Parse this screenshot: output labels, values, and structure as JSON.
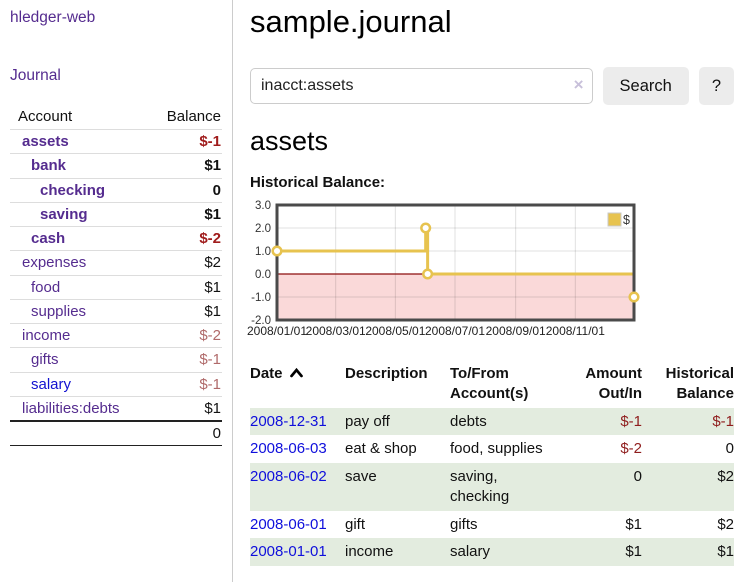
{
  "app": {
    "title": "hledger-web"
  },
  "sidebar": {
    "journal_link": "Journal",
    "accounts": {
      "header_account": "Account",
      "header_balance": "Balance",
      "rows": [
        {
          "name": "assets",
          "indent": 1,
          "bold": true,
          "balance": "$-1",
          "balance_class": "neg-strong",
          "link_blue": false
        },
        {
          "name": "bank",
          "indent": 2,
          "bold": true,
          "balance": "$1",
          "balance_class": "pos",
          "link_blue": false
        },
        {
          "name": "checking",
          "indent": 3,
          "bold": true,
          "balance": "0",
          "balance_class": "pos",
          "link_blue": false
        },
        {
          "name": "saving",
          "indent": 3,
          "bold": true,
          "balance": "$1",
          "balance_class": "pos",
          "link_blue": false
        },
        {
          "name": "cash",
          "indent": 2,
          "bold": true,
          "balance": "$-2",
          "balance_class": "neg-strong",
          "link_blue": false
        },
        {
          "name": "expenses",
          "indent": 1,
          "bold": false,
          "balance": "$2",
          "balance_class": "pos",
          "link_blue": false
        },
        {
          "name": "food",
          "indent": 2,
          "bold": false,
          "balance": "$1",
          "balance_class": "pos",
          "link_blue": false
        },
        {
          "name": "supplies",
          "indent": 2,
          "bold": false,
          "balance": "$1",
          "balance_class": "pos",
          "link_blue": false
        },
        {
          "name": "income",
          "indent": 1,
          "bold": false,
          "balance": "$-2",
          "balance_class": "neg-muted",
          "link_blue": false
        },
        {
          "name": "gifts",
          "indent": 2,
          "bold": false,
          "balance": "$-1",
          "balance_class": "neg-muted",
          "link_blue": false
        },
        {
          "name": "salary",
          "indent": 2,
          "bold": false,
          "balance": "$-1",
          "balance_class": "neg-muted",
          "link_blue": true
        },
        {
          "name": "liabilities:debts",
          "indent": 1,
          "bold": false,
          "balance": "$1",
          "balance_class": "pos",
          "link_blue": false
        }
      ],
      "total": "0"
    }
  },
  "main": {
    "title": "sample.journal",
    "search": {
      "value": "inacct:assets",
      "clear_icon": "×",
      "button_label": "Search",
      "help_label": "?"
    },
    "account_heading": "assets",
    "chart_label": "Historical Balance:"
  },
  "chart_data": {
    "type": "line",
    "step": true,
    "title": "Historical Balance",
    "series": [
      {
        "name": "$",
        "color": "#e7c34f",
        "points": [
          {
            "date": "2008-01-01",
            "value": 1
          },
          {
            "date": "2008-06-01",
            "value": 2
          },
          {
            "date": "2008-06-03",
            "value": 0
          },
          {
            "date": "2008-12-31",
            "value": -1
          }
        ]
      }
    ],
    "x_domain": [
      "2008-01-01",
      "2008-12-31"
    ],
    "ylim": [
      -2,
      3
    ],
    "yticks": [
      {
        "label": "3.0",
        "value": 3
      },
      {
        "label": "2.0",
        "value": 2
      },
      {
        "label": "1.0",
        "value": 1
      },
      {
        "label": "0.0",
        "value": 0
      },
      {
        "label": "-1.0",
        "value": -1
      },
      {
        "label": "-2.0",
        "value": -2
      }
    ],
    "xticks": [
      {
        "label": "2008/01/01",
        "date": "2008-01-01"
      },
      {
        "label": "2008/03/01",
        "date": "2008-03-01"
      },
      {
        "label": "2008/05/01",
        "date": "2008-05-01"
      },
      {
        "label": "2008/07/01",
        "date": "2008-07-01"
      },
      {
        "label": "2008/09/01",
        "date": "2008-09-01"
      },
      {
        "label": "2008/11/01",
        "date": "2008-11-01"
      }
    ],
    "legend": {
      "label": "$",
      "position": "top-right"
    },
    "negative_fill": "#fad9d9",
    "zero_line_color": "#8c0d0d",
    "grid": true,
    "border_color": "#4a4a4a"
  },
  "register": {
    "headers": {
      "date": "Date",
      "description": "Description",
      "accounts": "To/From Account(s)",
      "amount": "Amount Out/In",
      "balance": "Historical Balance"
    },
    "rows": [
      {
        "date": "2008-12-31",
        "description": "pay off",
        "accounts": "debts",
        "amount": "$-1",
        "amount_neg": true,
        "balance": "$-1",
        "balance_neg": true
      },
      {
        "date": "2008-06-03",
        "description": "eat & shop",
        "accounts": "food, supplies",
        "amount": "$-2",
        "amount_neg": true,
        "balance": "0",
        "balance_neg": false
      },
      {
        "date": "2008-06-02",
        "description": "save",
        "accounts": "saving, checking",
        "amount": "0",
        "amount_neg": false,
        "balance": "$2",
        "balance_neg": false
      },
      {
        "date": "2008-06-01",
        "description": "gift",
        "accounts": "gifts",
        "amount": "$1",
        "amount_neg": false,
        "balance": "$2",
        "balance_neg": false
      },
      {
        "date": "2008-01-01",
        "description": "income",
        "accounts": "salary",
        "amount": "$1",
        "amount_neg": false,
        "balance": "$1",
        "balance_neg": false
      }
    ]
  },
  "colors": {
    "link_purple": "#552c8f",
    "link_blue": "#0f0fdc",
    "negative_strong": "#a01c1c",
    "negative_muted": "#b06a6a",
    "register_negative": "#8f1d1d",
    "row_stripe_green": "#e3ecdf",
    "series_gold": "#e7c34f",
    "chart_negative_fill": "#fad9d9"
  }
}
